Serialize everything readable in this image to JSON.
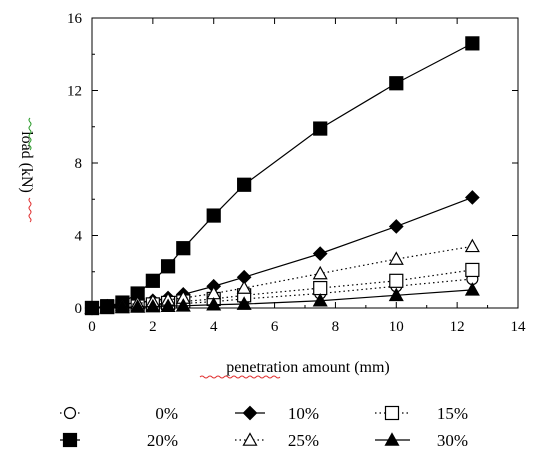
{
  "chart_data": {
    "type": "line",
    "xlabel": "penetration  amount (mm)",
    "ylabel": "load (kN)",
    "xlim": [
      0,
      14
    ],
    "ylim": [
      0,
      16
    ],
    "x_ticks": [
      "0",
      "2",
      "4",
      "6",
      "8",
      "10",
      "12",
      "14"
    ],
    "y_ticks": [
      "0",
      "4",
      "8",
      "12",
      "16"
    ],
    "grid": false,
    "legend_position": "bottom",
    "series": [
      {
        "name": "0%",
        "marker": "circle-open",
        "line": "dotted",
        "color": "#000000",
        "x": [
          0,
          0.5,
          1,
          1.5,
          2,
          2.5,
          3,
          4,
          5,
          7.5,
          10,
          12.5
        ],
        "y": [
          0,
          0.04,
          0.08,
          0.12,
          0.16,
          0.2,
          0.25,
          0.35,
          0.5,
          0.8,
          1.2,
          1.6
        ]
      },
      {
        "name": "10%",
        "marker": "diamond-filled",
        "line": "solid",
        "color": "#000000",
        "x": [
          0,
          0.5,
          1,
          1.5,
          2,
          2.5,
          3,
          4,
          5,
          7.5,
          10,
          12.5
        ],
        "y": [
          0,
          0.1,
          0.2,
          0.3,
          0.4,
          0.55,
          0.75,
          1.2,
          1.7,
          3.0,
          4.5,
          6.1
        ]
      },
      {
        "name": "15%",
        "marker": "square-open",
        "line": "dotted",
        "color": "#000000",
        "x": [
          0,
          0.5,
          1,
          1.5,
          2,
          2.5,
          3,
          4,
          5,
          7.5,
          10,
          12.5
        ],
        "y": [
          0,
          0.05,
          0.1,
          0.15,
          0.2,
          0.28,
          0.36,
          0.5,
          0.7,
          1.1,
          1.5,
          2.1
        ]
      },
      {
        "name": "20%",
        "marker": "square-filled",
        "line": "solid",
        "color": "#000000",
        "x": [
          0,
          0.5,
          1,
          1.5,
          2,
          2.5,
          3,
          4,
          5,
          7.5,
          10,
          12.5
        ],
        "y": [
          0,
          0.1,
          0.3,
          0.8,
          1.5,
          2.3,
          3.3,
          5.1,
          6.8,
          9.9,
          12.4,
          14.6
        ]
      },
      {
        "name": "25%",
        "marker": "triangle-open",
        "line": "dotted",
        "color": "#000000",
        "x": [
          0,
          0.5,
          1,
          1.5,
          2,
          2.5,
          3,
          4,
          5,
          7.5,
          10,
          12.5
        ],
        "y": [
          0,
          0.08,
          0.15,
          0.25,
          0.35,
          0.45,
          0.55,
          0.8,
          1.1,
          1.9,
          2.7,
          3.4
        ]
      },
      {
        "name": "30%",
        "marker": "triangle-filled",
        "line": "solid",
        "color": "#000000",
        "x": [
          0,
          0.5,
          1,
          1.5,
          2,
          2.5,
          3,
          4,
          5,
          7.5,
          10,
          12.5
        ],
        "y": [
          0,
          0.02,
          0.04,
          0.06,
          0.08,
          0.1,
          0.12,
          0.18,
          0.22,
          0.4,
          0.7,
          1.0
        ]
      }
    ],
    "legend_order": [
      "0%",
      "10%",
      "15%",
      "20%",
      "25%",
      "30%"
    ]
  }
}
